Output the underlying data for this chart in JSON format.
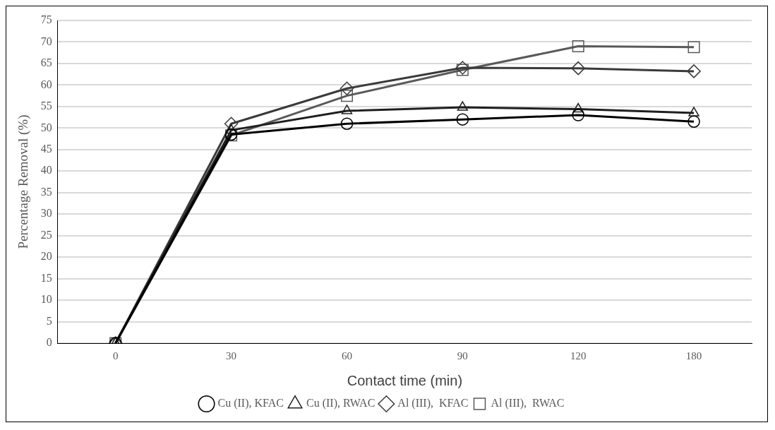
{
  "chart_data": {
    "type": "line",
    "xlabel": "Contact time (min)",
    "ylabel": "Percentage Removal (%)",
    "categories": [
      "0",
      "30",
      "60",
      "90",
      "120",
      "180"
    ],
    "series": [
      {
        "name": "Cu (II), KFAC",
        "color": "#000000",
        "marker": "circle",
        "values": [
          0,
          48.5,
          51,
          52,
          53,
          51.5
        ]
      },
      {
        "name": "Cu (II), RWAC",
        "color": "#1f1f1f",
        "marker": "triangle",
        "values": [
          0,
          49.5,
          54,
          54.8,
          54.4,
          53.5
        ]
      },
      {
        "name": "Al (III),  KFAC",
        "color": "#3a3a3a",
        "marker": "diamond",
        "values": [
          0,
          51,
          59.2,
          64,
          63.9,
          63.2
        ]
      },
      {
        "name": "Al (III),  RWAC",
        "color": "#595959",
        "marker": "square",
        "values": [
          0,
          48.3,
          57.5,
          63.5,
          69,
          68.8
        ]
      }
    ],
    "ylim": [
      0,
      75
    ],
    "yticks": [
      0,
      5,
      10,
      15,
      20,
      25,
      30,
      35,
      40,
      45,
      50,
      55,
      60,
      65,
      70,
      75
    ],
    "grid": "y",
    "legend": "bottom",
    "line_style": "solid"
  }
}
